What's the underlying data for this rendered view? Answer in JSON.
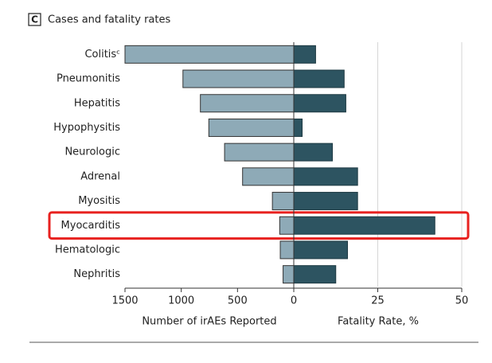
{
  "chart_data": {
    "type": "butterfly",
    "panel": "C",
    "title": "Cases and fatality rates",
    "categories": [
      "Colitisᶜ",
      "Pneumonitis",
      "Hepatitis",
      "Hypophysitis",
      "Neurologic",
      "Adrenal",
      "Myositis",
      "Myocarditis",
      "Hematologic",
      "Nephritis"
    ],
    "series": [
      {
        "color": "#8eaab7",
        "values": [
          1500,
          985,
          830,
          755,
          615,
          455,
          190,
          125,
          120,
          95
        ],
        "axis": "x"
      },
      {
        "color": "#2d5461",
        "values": [
          6.5,
          15,
          15.5,
          2.5,
          11.5,
          19,
          19,
          42,
          16,
          12.5
        ],
        "axis": "x2"
      }
    ],
    "xlim": [
      1500,
      0
    ],
    "xticks": [
      1500,
      1000,
      500
    ],
    "x2lim": [
      0,
      50
    ],
    "x2ticks": [
      0,
      25,
      50
    ],
    "xlabel": "Number of irAEs Reported",
    "x2label": "Fatality Rate, %",
    "grid": true,
    "highlight": "Myocarditis"
  }
}
